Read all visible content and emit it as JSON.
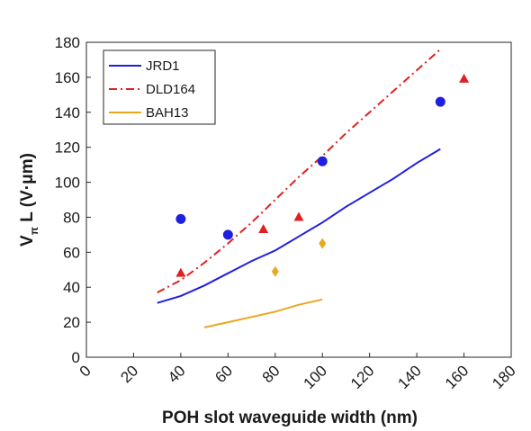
{
  "chart_data": {
    "type": "line",
    "title": "",
    "xlabel": "POH slot waveguide width (nm)",
    "ylabel_main": "V",
    "ylabel_sub": "π",
    "ylabel_rest": " L (V·μm)",
    "xlim": [
      0,
      180
    ],
    "ylim": [
      0,
      180
    ],
    "xticks": [
      0,
      20,
      40,
      60,
      80,
      100,
      120,
      140,
      160,
      180
    ],
    "yticks": [
      0,
      20,
      40,
      60,
      80,
      100,
      120,
      140,
      160,
      180
    ],
    "grid": false,
    "legend_position": "top-left",
    "series": [
      {
        "name": "JRD1",
        "kind": "line",
        "style": "solid",
        "color": "#1f1fe0",
        "x": [
          30,
          40,
          50,
          60,
          70,
          80,
          90,
          100,
          110,
          120,
          130,
          140,
          150
        ],
        "y": [
          31,
          35,
          41,
          48,
          55,
          61,
          69,
          77,
          86,
          94,
          102,
          111,
          119
        ]
      },
      {
        "name": "DLD164",
        "kind": "line",
        "style": "dashdot",
        "color": "#e02020",
        "x": [
          30,
          40,
          50,
          60,
          70,
          80,
          90,
          100,
          110,
          120,
          130,
          140,
          150
        ],
        "y": [
          37,
          44,
          54,
          65,
          77,
          90,
          103,
          115,
          128,
          140,
          152,
          164,
          176
        ]
      },
      {
        "name": "BAH13",
        "kind": "line",
        "style": "solid",
        "color": "#e8a820",
        "x": [
          50,
          60,
          70,
          80,
          90,
          100
        ],
        "y": [
          17,
          20,
          23,
          26,
          30,
          33
        ]
      },
      {
        "kind": "markers",
        "marker": "circle",
        "color": "#1f1fe0",
        "x": [
          40,
          60,
          100,
          150
        ],
        "y": [
          79,
          70,
          112,
          146
        ]
      },
      {
        "kind": "markers",
        "marker": "triangle",
        "color": "#e02020",
        "x": [
          40,
          75,
          90,
          160
        ],
        "y": [
          48,
          73,
          80,
          159
        ]
      },
      {
        "kind": "markers",
        "marker": "diamond",
        "color": "#e8a820",
        "x": [
          80,
          100
        ],
        "y": [
          49,
          65
        ]
      }
    ]
  }
}
